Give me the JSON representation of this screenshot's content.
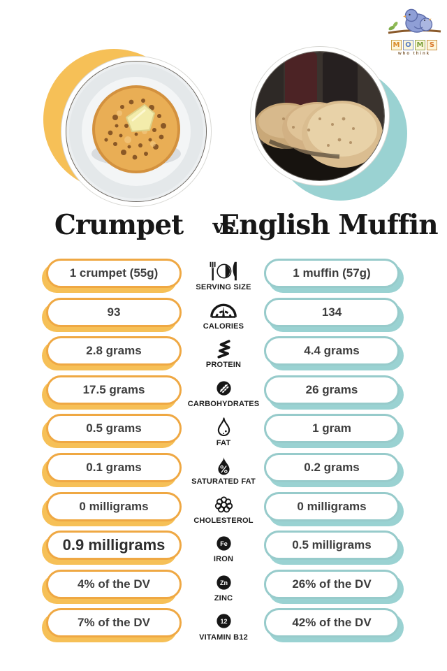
{
  "logo": {
    "tagline": "who think",
    "letters": [
      {
        "ch": "M",
        "color": "#d98c2b",
        "border": "#c9a045"
      },
      {
        "ch": "O",
        "color": "#5b7fc4",
        "border": "#7b8fc0"
      },
      {
        "ch": "M",
        "color": "#7aa03c",
        "border": "#9aa84e"
      },
      {
        "ch": "S",
        "color": "#d9772b",
        "border": "#c9903f"
      }
    ]
  },
  "header": {
    "left_title": "Crumpet",
    "vs": "vs",
    "right_title": "English Muffin"
  },
  "colors": {
    "accent_yellow": "#efa843",
    "accent_yellow_light": "#f6c057",
    "accent_teal": "#97cbcb",
    "accent_teal_light": "#9ad2d2"
  },
  "photos": {
    "left": "crumpet with butter on white plate",
    "right": "english muffins on dark skillet"
  },
  "rows": [
    {
      "label": "SERVING SIZE",
      "icon": "serving-size-icon",
      "left": "1 crumpet (55g)",
      "right": "1 muffin (57g)"
    },
    {
      "label": "CALORIES",
      "icon": "calories-icon",
      "left": "93",
      "right": "134"
    },
    {
      "label": "PROTEIN",
      "icon": "protein-icon",
      "left": "2.8 grams",
      "right": "4.4 grams"
    },
    {
      "label": "CARBOHYDRATES",
      "icon": "carbohydrates-icon",
      "left": "17.5 grams",
      "right": "26 grams"
    },
    {
      "label": "FAT",
      "icon": "fat-icon",
      "left": "0.5 grams",
      "right": "1 gram"
    },
    {
      "label": "SATURATED FAT",
      "icon": "saturated-fat-icon",
      "left": "0.1 grams",
      "right": "0.2 grams"
    },
    {
      "label": "CHOLESTEROL",
      "icon": "cholesterol-icon",
      "left": "0 milligrams",
      "right": "0 milligrams"
    },
    {
      "label": "IRON",
      "icon": "iron-icon",
      "left": "0.9 milligrams",
      "right": "0.5 milligrams",
      "left_large": true
    },
    {
      "label": "ZINC",
      "icon": "zinc-icon",
      "left": "4% of the DV",
      "right": "26% of the DV"
    },
    {
      "label": "VITAMIN B12",
      "icon": "vitamin-b12-icon",
      "left": "7% of the DV",
      "right": "42% of the DV"
    }
  ],
  "element_symbols": {
    "iron": "Fe",
    "zinc": "Zn",
    "b12": "12"
  }
}
